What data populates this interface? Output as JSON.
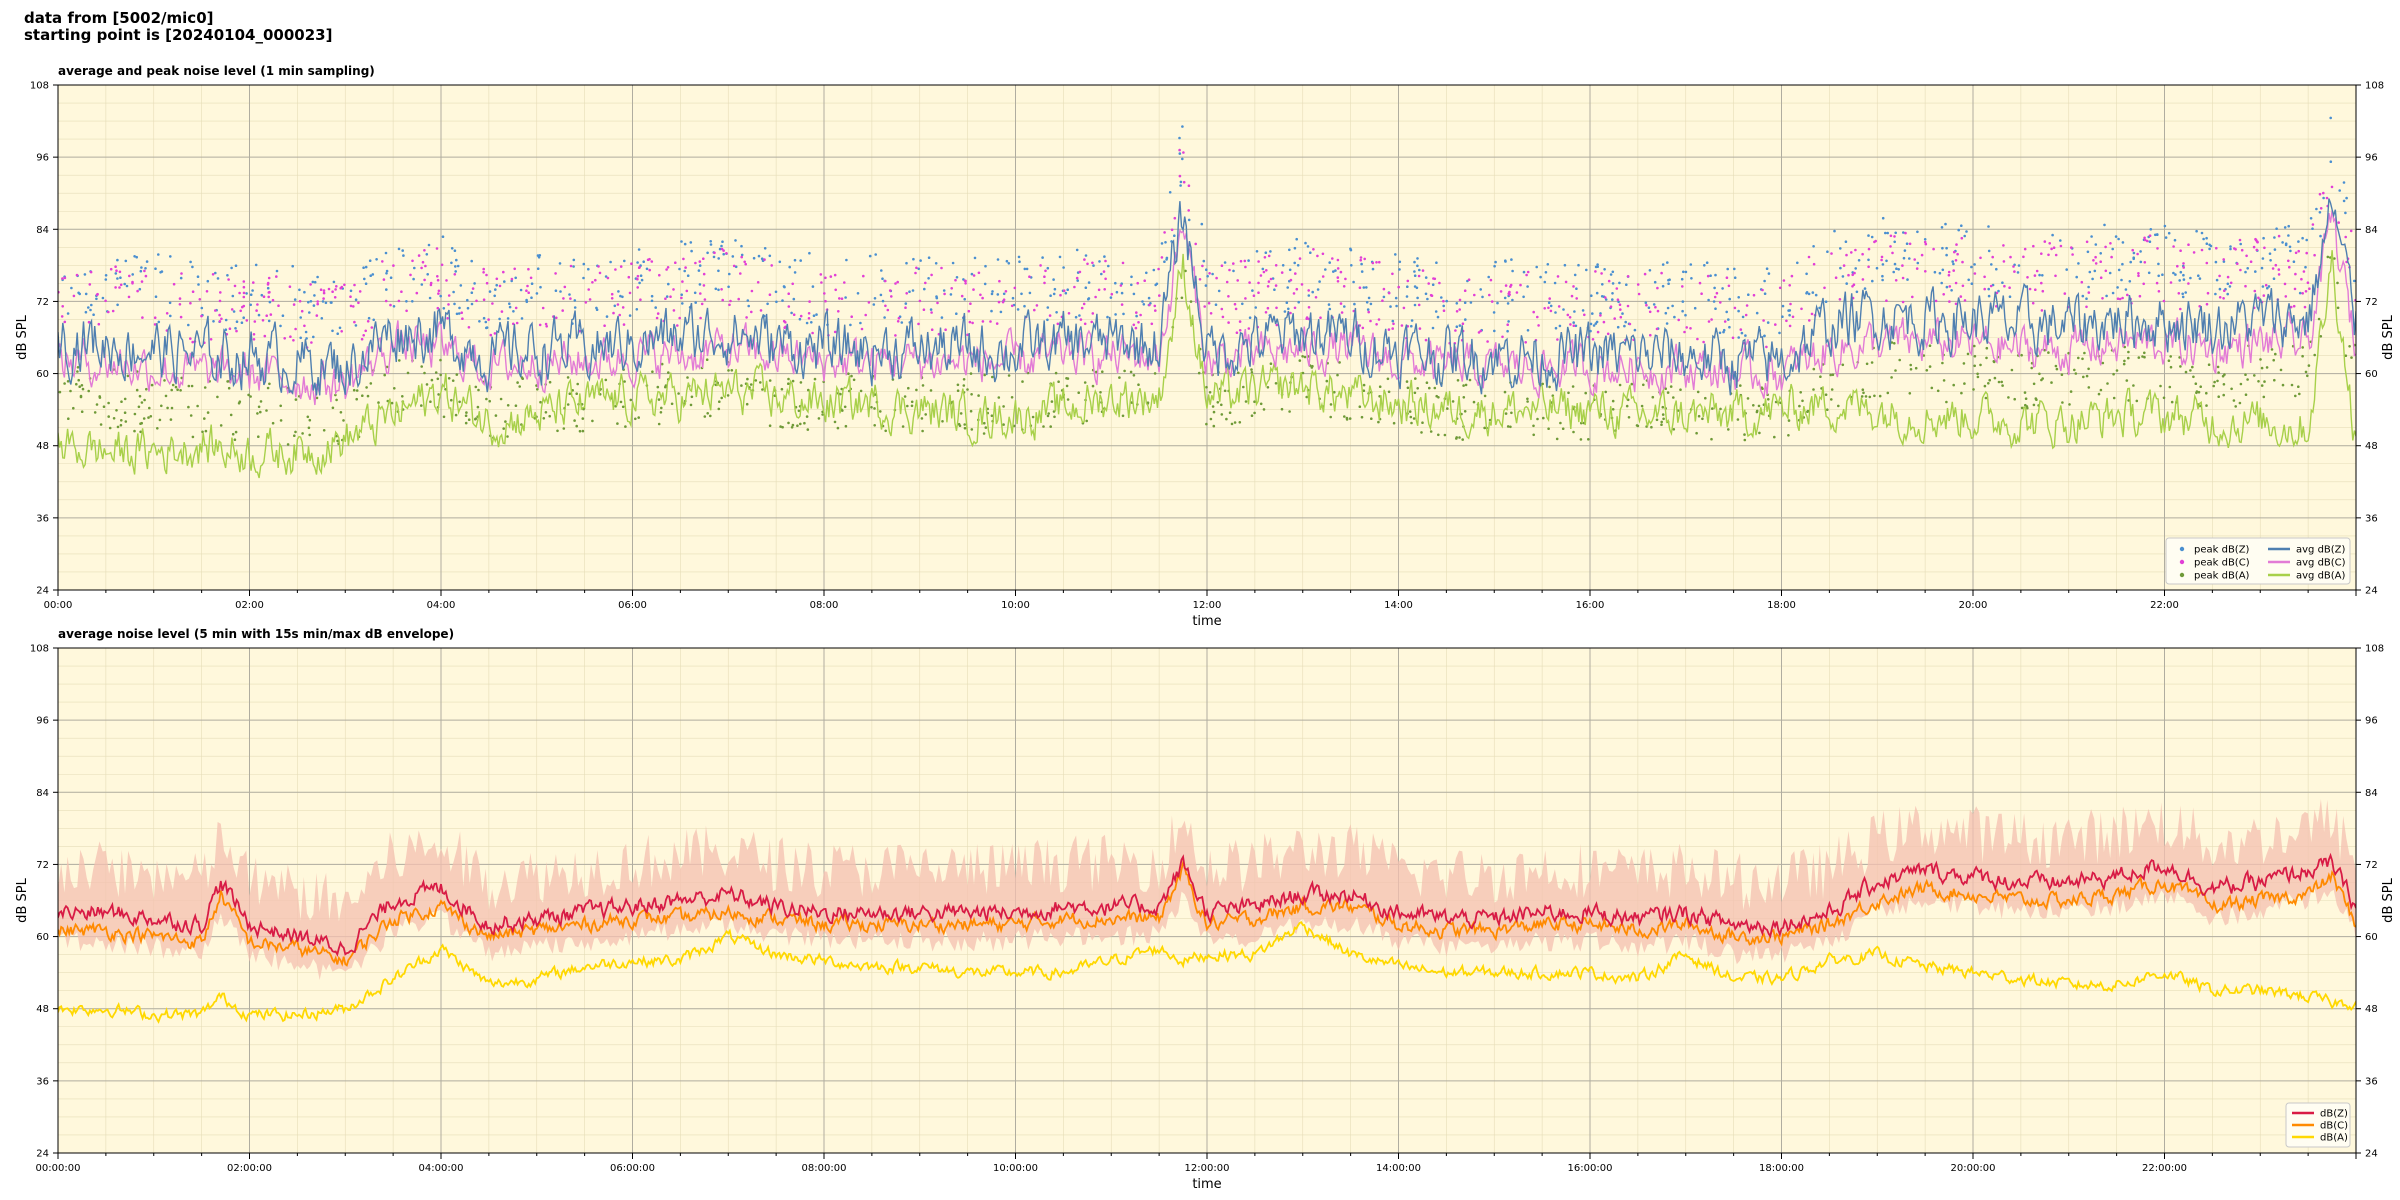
{
  "header": {
    "line1": "data from [5002/mic0]",
    "line2": "starting point is [20240104_000023]"
  },
  "chart_data": [
    {
      "type": "line",
      "title": "average and peak noise level (1 min sampling)",
      "xlabel": "time",
      "ylabel": "dB SPL",
      "ylabel_right": "dB SPL",
      "xlim_hours": [
        0,
        24
      ],
      "ylim": [
        24,
        108
      ],
      "yticks": [
        "108",
        "96",
        "84",
        "72",
        "60",
        "48",
        "36",
        "24"
      ],
      "xticks": [
        "00:00",
        "02:00",
        "04:00",
        "06:00",
        "08:00",
        "10:00",
        "12:00",
        "14:00",
        "16:00",
        "18:00",
        "20:00",
        "22:00"
      ],
      "grid": true,
      "legend": "bottom-right",
      "legend_entries": [
        {
          "label": "peak dB(Z)",
          "kind": "dot",
          "color": "#4a8fd0"
        },
        {
          "label": "peak dB(C)",
          "kind": "dot",
          "color": "#e23fd6"
        },
        {
          "label": "peak dB(A)",
          "kind": "dot",
          "color": "#6f9a38"
        },
        {
          "label": "avg dB(Z)",
          "kind": "line",
          "color": "#4f7fb0"
        },
        {
          "label": "avg dB(C)",
          "kind": "line",
          "color": "#e27bd6"
        },
        {
          "label": "avg dB(A)",
          "kind": "line",
          "color": "#a8d04a"
        }
      ],
      "series": [
        {
          "name": "avg dB(Z)",
          "color": "#4f7fb0",
          "x": [
            0,
            0.5,
            1,
            1.5,
            2,
            2.5,
            3,
            3.5,
            4,
            4.5,
            5,
            5.5,
            6,
            6.5,
            7,
            7.5,
            8,
            8.5,
            9,
            9.5,
            10,
            10.5,
            11,
            11.5,
            11.75,
            12,
            12.5,
            13,
            13.5,
            14,
            14.5,
            15,
            15.5,
            16,
            16.5,
            17,
            17.5,
            18,
            18.5,
            19,
            19.5,
            20,
            20.5,
            21,
            21.5,
            22,
            22.5,
            23,
            23.5,
            23.75,
            24
          ],
          "values": [
            66,
            65,
            64,
            63,
            63,
            62,
            61,
            67,
            67,
            63,
            64,
            64,
            65,
            66,
            67,
            65,
            64,
            64,
            64,
            64,
            64,
            65,
            65,
            65,
            87,
            64,
            65,
            67,
            66,
            64,
            63,
            63,
            63,
            63,
            63,
            63,
            62,
            62,
            68,
            70,
            69,
            69,
            68,
            68,
            69,
            69,
            68,
            69,
            69,
            88,
            68
          ],
          "noise": 4
        },
        {
          "name": "avg dB(C)",
          "color": "#e27bd6",
          "x": [
            0,
            0.5,
            1,
            1.5,
            2,
            2.5,
            3,
            3.5,
            4,
            4.5,
            5,
            5.5,
            6,
            6.5,
            7,
            7.5,
            8,
            8.5,
            9,
            9.5,
            10,
            10.5,
            11,
            11.5,
            11.75,
            12,
            12.5,
            13,
            13.5,
            14,
            14.5,
            15,
            15.5,
            16,
            16.5,
            17,
            17.5,
            18,
            18.5,
            19,
            19.5,
            20,
            20.5,
            21,
            21.5,
            22,
            22.5,
            23,
            23.5,
            23.75,
            24
          ],
          "values": [
            62,
            62,
            61,
            60,
            60,
            59,
            58,
            65,
            64,
            61,
            62,
            62,
            63,
            63,
            64,
            63,
            62,
            62,
            62,
            62,
            62,
            63,
            63,
            63,
            85,
            62,
            63,
            64,
            64,
            62,
            61,
            61,
            61,
            61,
            61,
            61,
            60,
            60,
            64,
            65,
            65,
            65,
            64,
            64,
            65,
            65,
            64,
            65,
            65,
            86,
            64
          ],
          "noise": 3
        },
        {
          "name": "avg dB(A)",
          "color": "#a8d04a",
          "x": [
            0,
            0.5,
            1,
            1.5,
            2,
            2.5,
            3,
            3.5,
            4,
            4.5,
            5,
            5.5,
            6,
            6.5,
            7,
            7.5,
            8,
            8.5,
            9,
            9.5,
            10,
            10.5,
            11,
            11.5,
            11.75,
            12,
            12.5,
            13,
            13.5,
            14,
            14.5,
            15,
            15.5,
            16,
            16.5,
            17,
            17.5,
            18,
            18.5,
            19,
            19.5,
            20,
            20.5,
            21,
            21.5,
            22,
            22.5,
            23,
            23.5,
            23.75,
            24
          ],
          "values": [
            48,
            47,
            47,
            48,
            47,
            47,
            49,
            53,
            57,
            52,
            53,
            55,
            56,
            56,
            57,
            56,
            55,
            55,
            54,
            53,
            53,
            54,
            56,
            56,
            78,
            56,
            57,
            58,
            56,
            55,
            54,
            54,
            54,
            54,
            53,
            53,
            53,
            54,
            55,
            54,
            53,
            53,
            52,
            52,
            53,
            53,
            52,
            52,
            51,
            79,
            49
          ],
          "noise": 3
        },
        {
          "name": "peak dB(Z)",
          "kind": "scatter",
          "color": "#4a8fd0",
          "offset": 10,
          "spread": 6
        },
        {
          "name": "peak dB(C)",
          "kind": "scatter",
          "color": "#e23fd6",
          "offset": 8,
          "spread": 6
        },
        {
          "name": "peak dB(A)",
          "kind": "scatter",
          "color": "#6f9a38",
          "offset": -9,
          "spread": 5
        }
      ]
    },
    {
      "type": "line",
      "title": "average noise level (5 min with 15s min/max dB envelope)",
      "xlabel": "time",
      "ylabel": "dB SPL",
      "ylabel_right": "dB SPL",
      "xlim_hours": [
        0,
        24
      ],
      "ylim": [
        24,
        108
      ],
      "yticks": [
        "108",
        "96",
        "84",
        "72",
        "60",
        "48",
        "36",
        "24"
      ],
      "xticks": [
        "00:00:00",
        "02:00:00",
        "04:00:00",
        "06:00:00",
        "08:00:00",
        "10:00:00",
        "12:00:00",
        "14:00:00",
        "16:00:00",
        "18:00:00",
        "20:00:00",
        "22:00:00"
      ],
      "grid": true,
      "legend": "bottom-right",
      "legend_entries": [
        {
          "label": "dB(Z)",
          "kind": "line",
          "color": "#d81b45"
        },
        {
          "label": "dB(C)",
          "kind": "line",
          "color": "#ff8a00"
        },
        {
          "label": "dB(A)",
          "kind": "line",
          "color": "#ffd800"
        }
      ],
      "series": [
        {
          "name": "dB(Z)",
          "color": "#d81b45",
          "x": [
            0,
            0.5,
            1,
            1.5,
            1.7,
            2,
            2.5,
            3,
            3.5,
            4,
            4.5,
            5,
            5.5,
            6,
            6.5,
            7,
            7.5,
            8,
            8.5,
            9,
            9.5,
            10,
            10.5,
            11,
            11.5,
            11.75,
            12,
            12.5,
            13,
            13.5,
            14,
            14.5,
            15,
            15.5,
            16,
            16.5,
            17,
            17.5,
            18,
            18.5,
            19,
            19.5,
            20,
            20.5,
            21,
            21.5,
            22,
            22.5,
            23,
            23.5,
            23.75,
            24
          ],
          "values": [
            64,
            64,
            63,
            62,
            69,
            62,
            60,
            58,
            66,
            68,
            62,
            63,
            64,
            65,
            66,
            67,
            65,
            64,
            64,
            64,
            64,
            64,
            65,
            65,
            65,
            72,
            64,
            65,
            67,
            67,
            64,
            63,
            63,
            64,
            64,
            63,
            64,
            62,
            62,
            64,
            69,
            71,
            70,
            69,
            69,
            70,
            72,
            68,
            69,
            71,
            72,
            65
          ],
          "noise": 1.2
        },
        {
          "name": "dB(C)",
          "color": "#ff8a00",
          "x": [
            0,
            0.5,
            1,
            1.5,
            1.7,
            2,
            2.5,
            3,
            3.5,
            4,
            4.5,
            5,
            5.5,
            6,
            6.5,
            7,
            7.5,
            8,
            8.5,
            9,
            9.5,
            10,
            10.5,
            11,
            11.5,
            11.75,
            12,
            12.5,
            13,
            13.5,
            14,
            14.5,
            15,
            15.5,
            16,
            16.5,
            17,
            17.5,
            18,
            18.5,
            19,
            19.5,
            20,
            20.5,
            21,
            21.5,
            22,
            22.5,
            23,
            23.5,
            23.75,
            24
          ],
          "values": [
            61,
            61,
            60,
            59,
            67,
            59,
            58,
            56,
            63,
            65,
            60,
            61,
            62,
            63,
            63,
            64,
            63,
            62,
            62,
            62,
            62,
            62,
            63,
            63,
            63,
            71,
            62,
            63,
            65,
            65,
            62,
            61,
            61,
            62,
            62,
            61,
            62,
            60,
            60,
            62,
            66,
            68,
            67,
            66,
            66,
            67,
            69,
            65,
            66,
            67,
            70,
            62
          ],
          "noise": 1.0
        },
        {
          "name": "dB(A)",
          "color": "#ffd800",
          "x": [
            0,
            0.5,
            1,
            1.5,
            1.7,
            2,
            2.5,
            3,
            3.5,
            4,
            4.5,
            5,
            5.5,
            6,
            6.5,
            7,
            7.5,
            8,
            8.5,
            9,
            9.5,
            10,
            10.5,
            11,
            11.5,
            11.75,
            12,
            12.5,
            13,
            13.5,
            14,
            14.5,
            15,
            15.5,
            16,
            16.5,
            17,
            17.5,
            18,
            18.5,
            19,
            19.5,
            20,
            20.5,
            21,
            21.5,
            22,
            22.5,
            23,
            23.5,
            23.75,
            24
          ],
          "values": [
            48,
            48,
            47,
            47,
            50,
            47,
            47,
            48,
            53,
            58,
            52,
            53,
            55,
            56,
            56,
            60,
            57,
            56,
            55,
            55,
            54,
            54,
            54,
            56,
            58,
            56,
            57,
            57,
            62,
            57,
            55,
            54,
            54,
            54,
            54,
            53,
            57,
            53,
            53,
            56,
            57,
            55,
            54,
            53,
            52,
            52,
            54,
            51,
            51,
            50,
            49,
            49
          ],
          "noise": 0.8
        },
        {
          "name": "envelope",
          "kind": "band",
          "color": "#f4c0b0",
          "offset_lo": -6,
          "offset_hi": 8
        }
      ]
    }
  ]
}
